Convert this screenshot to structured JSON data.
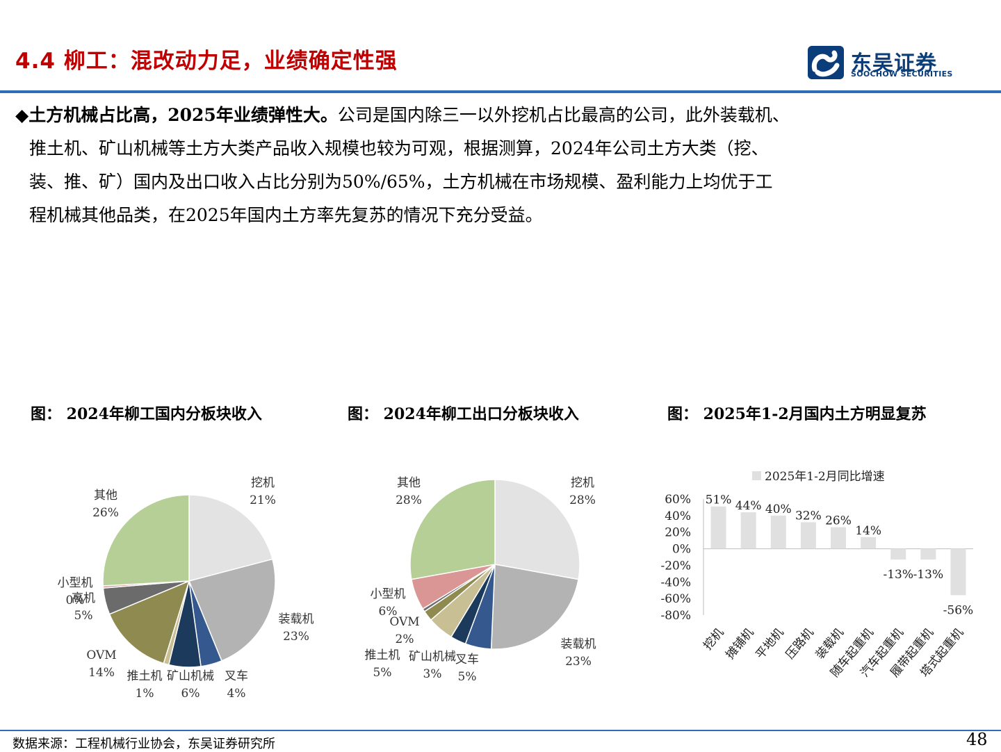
{
  "header": {
    "title": "4.4 柳工：混改动力足，业绩确定性强"
  },
  "logo": {
    "name_cn": "东吴证券",
    "name_en": "SOOCHOW SECURITIES"
  },
  "body": {
    "bullet": "◆",
    "lead": "土方机械占比高，2025年业绩弹性大。",
    "line1_rest": "公司是国内除三一以外挖机占比最高的公司，此外装载机、",
    "line2": "推土机、矿山机械等土方大类产品收入规模也较为可观，根据测算，2024年公司土方大类（挖、",
    "line3": "装、推、矿）国内及出口收入占比分别为50%/65%，土方机械在市场规模、盈利能力上均优于工",
    "line4": "程机械其他品类，在2025年国内土方率先复苏的情况下充分受益。"
  },
  "figures": {
    "fig1_title": "图： 2024年柳工国内分板块收入",
    "fig2_title": "图： 2024年柳工出口分板块收入",
    "fig3_title": "图： 2025年1-2月国内土方明显复苏"
  },
  "colors": {
    "excavator": "#e3e3e3",
    "loader": "#b3b3b3",
    "forklift": "#35598f",
    "mining": "#1b3a5c",
    "dozer": "#c9bf94",
    "ovm": "#8f8a4f",
    "small": "#d99694",
    "small_domestic": "#6b6b6b",
    "other": "#b5cf96",
    "bar": "#e0e0e0",
    "accent_title": "#c00000",
    "rule": "#2e6db4"
  },
  "chart_data": [
    {
      "type": "pie",
      "title": "图： 2024年柳工国内分板块收入",
      "slices": [
        {
          "label": "挖机",
          "value": 21,
          "text": "21%",
          "color": "#e3e3e3"
        },
        {
          "label": "装载机",
          "value": 23,
          "text": "23%",
          "color": "#b3b3b3"
        },
        {
          "label": "叉车",
          "value": 4,
          "text": "4%",
          "color": "#35598f"
        },
        {
          "label": "矿山机械",
          "value": 6,
          "text": "6%",
          "color": "#1b3a5c"
        },
        {
          "label": "推土机",
          "value": 1,
          "text": "1%",
          "color": "#c9bf94"
        },
        {
          "label": "OVM",
          "value": 14,
          "text": "14%",
          "color": "#8f8a4f"
        },
        {
          "label": "高机",
          "value": 5,
          "text": "5%",
          "color": "#6b6b6b"
        },
        {
          "label": "小型机",
          "value": 0.4,
          "text": "0%",
          "color": "#d99694"
        },
        {
          "label": "其他",
          "value": 26,
          "text": "26%",
          "color": "#b5cf96"
        }
      ]
    },
    {
      "type": "pie",
      "title": "图： 2024年柳工出口分板块收入",
      "slices": [
        {
          "label": "挖机",
          "value": 28,
          "text": "28%",
          "color": "#e3e3e3"
        },
        {
          "label": "装载机",
          "value": 23,
          "text": "23%",
          "color": "#b3b3b3"
        },
        {
          "label": "叉车",
          "value": 5,
          "text": "5%",
          "color": "#35598f"
        },
        {
          "label": "矿山机械",
          "value": 3,
          "text": "3%",
          "color": "#1b3a5c"
        },
        {
          "label": "推土机",
          "value": 5,
          "text": "5%",
          "color": "#c9bf94"
        },
        {
          "label": "OVM",
          "value": 2,
          "text": "2%",
          "color": "#8f8a4f"
        },
        {
          "label": "",
          "value": 0.6,
          "text": "",
          "color": "#6b6b6b"
        },
        {
          "label": "小型机",
          "value": 6,
          "text": "6%",
          "color": "#d99694"
        },
        {
          "label": "其他",
          "value": 28,
          "text": "28%",
          "color": "#b5cf96"
        }
      ]
    },
    {
      "type": "bar",
      "title": "图： 2025年1-2月国内土方明显复苏",
      "legend": "2025年1-2月同比增速",
      "categories": [
        "挖机",
        "摊铺机",
        "平地机",
        "压路机",
        "装载机",
        "随车起重机",
        "汽车起重机",
        "履带起重机",
        "塔式起重机"
      ],
      "values": [
        51,
        44,
        40,
        32,
        26,
        14,
        -13,
        -13,
        -56
      ],
      "value_labels": [
        "51%",
        "44%",
        "40%",
        "32%",
        "26%",
        "14%",
        "-13%",
        "-13%",
        "-56%"
      ],
      "yticks": [
        "60%",
        "40%",
        "20%",
        "0%",
        "-20%",
        "-40%",
        "-60%",
        "-80%"
      ],
      "ylim": [
        -80,
        60
      ]
    }
  ],
  "footer": {
    "source": "数据来源：工程机械行业协会，东吴证券研究所",
    "page": "48"
  }
}
